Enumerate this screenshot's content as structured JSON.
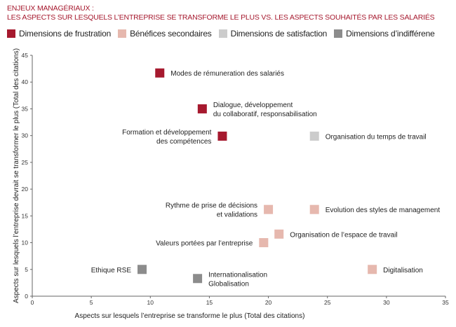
{
  "header": {
    "line1": "ENJEUX MANAGÉRIAUX :",
    "line2": "LES ASPECTS SUR LESQUELS L’ENTREPRISE SE TRANSFORME LE PLUS VS. LES ASPECTS SOUHAITÉS PAR LES SALARIÉS"
  },
  "colors": {
    "frustration": "#a6192e",
    "benefices": "#e6b8ae",
    "satisfaction": "#cccccc",
    "indifference": "#8c8c8c",
    "title": "#a6192e",
    "axis": "#666666"
  },
  "chart_data": {
    "type": "scatter",
    "xlabel": "Aspects sur lesquels l’entreprise se transforme le plus (Total des citations)",
    "ylabel": "Aspects sur lesquels l’entreprise devrait se transformer le plus (Total des citations)",
    "xlim": [
      0,
      35
    ],
    "ylim": [
      0,
      45
    ],
    "xticks": [
      0,
      5,
      10,
      15,
      20,
      25,
      30,
      35
    ],
    "yticks": [
      0,
      5,
      10,
      15,
      20,
      25,
      30,
      35,
      40,
      45
    ],
    "grid": false,
    "legend_position": "top-left",
    "series": [
      {
        "name": "Dimensions de frustration",
        "key": "frustration"
      },
      {
        "name": "Bénéfices secondaires",
        "key": "benefices"
      },
      {
        "name": "Dimensions de satisfaction",
        "key": "satisfaction"
      },
      {
        "name": "Dimensions d’indifférene",
        "key": "indifference"
      }
    ],
    "points": [
      {
        "series": "frustration",
        "x": 10.8,
        "y": 41.7,
        "label": [
          "Modes de rémuneration des salariés"
        ],
        "side": "right"
      },
      {
        "series": "frustration",
        "x": 14.4,
        "y": 35.0,
        "label": [
          "Dialogue, développement",
          "du collaboratif, responsabilisation"
        ],
        "side": "right"
      },
      {
        "series": "frustration",
        "x": 16.1,
        "y": 29.9,
        "label": [
          "Formation et développement",
          "des compétences"
        ],
        "side": "left"
      },
      {
        "series": "satisfaction",
        "x": 23.9,
        "y": 29.9,
        "label": [
          "Organisation du temps de travail"
        ],
        "side": "right"
      },
      {
        "series": "benefices",
        "x": 20.0,
        "y": 16.2,
        "label": [
          "Rythme de prise de décisions",
          "et validations"
        ],
        "side": "left"
      },
      {
        "series": "benefices",
        "x": 23.9,
        "y": 16.2,
        "label": [
          "Evolution des styles de management"
        ],
        "side": "right"
      },
      {
        "series": "benefices",
        "x": 20.9,
        "y": 11.6,
        "label": [
          "Organisation de l’espace de travail"
        ],
        "side": "right"
      },
      {
        "series": "benefices",
        "x": 19.6,
        "y": 10.0,
        "label": [
          "Valeurs portées par l’entreprise"
        ],
        "side": "left"
      },
      {
        "series": "indifference",
        "x": 9.3,
        "y": 5.0,
        "label": [
          "Ethique RSE"
        ],
        "side": "left"
      },
      {
        "series": "indifference",
        "x": 14.0,
        "y": 3.3,
        "label": [
          "Internationalisation",
          "Globalisation"
        ],
        "side": "right"
      },
      {
        "series": "benefices",
        "x": 28.8,
        "y": 5.0,
        "label": [
          "Digitalisation"
        ],
        "side": "right"
      }
    ]
  }
}
